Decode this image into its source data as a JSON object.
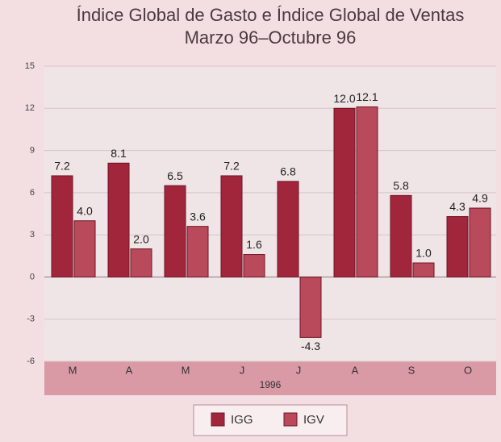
{
  "chart_data": {
    "type": "bar",
    "title": "Índice Global de Gasto e Índice Global de Ventas",
    "subtitle": "Marzo 96–Octubre 96",
    "xlabel": "1996",
    "categories": [
      "M",
      "A",
      "M",
      "J",
      "J",
      "A",
      "S",
      "O"
    ],
    "series": [
      {
        "name": "IGG",
        "color": "#a1263b",
        "values": [
          7.2,
          8.1,
          6.5,
          7.2,
          6.8,
          12.0,
          5.8,
          4.3
        ],
        "value_labels": [
          "7.2",
          "8.1",
          "6.5",
          "7.2",
          "6.8",
          "12.0",
          "5.8",
          "4.3"
        ]
      },
      {
        "name": "IGV",
        "color": "#b84a5c",
        "values": [
          4.0,
          2.0,
          3.6,
          1.6,
          -4.3,
          12.1,
          1.0,
          4.9
        ],
        "value_labels": [
          "4.0",
          "2.0",
          "3.6",
          "1.6",
          "-4.3",
          "12.1",
          "1.0",
          "4.9"
        ]
      }
    ],
    "ylim": [
      -6,
      15
    ],
    "yticks": [
      -6,
      -3,
      0,
      3,
      6,
      9,
      12,
      15
    ],
    "grid": true,
    "legend": "bottom"
  }
}
